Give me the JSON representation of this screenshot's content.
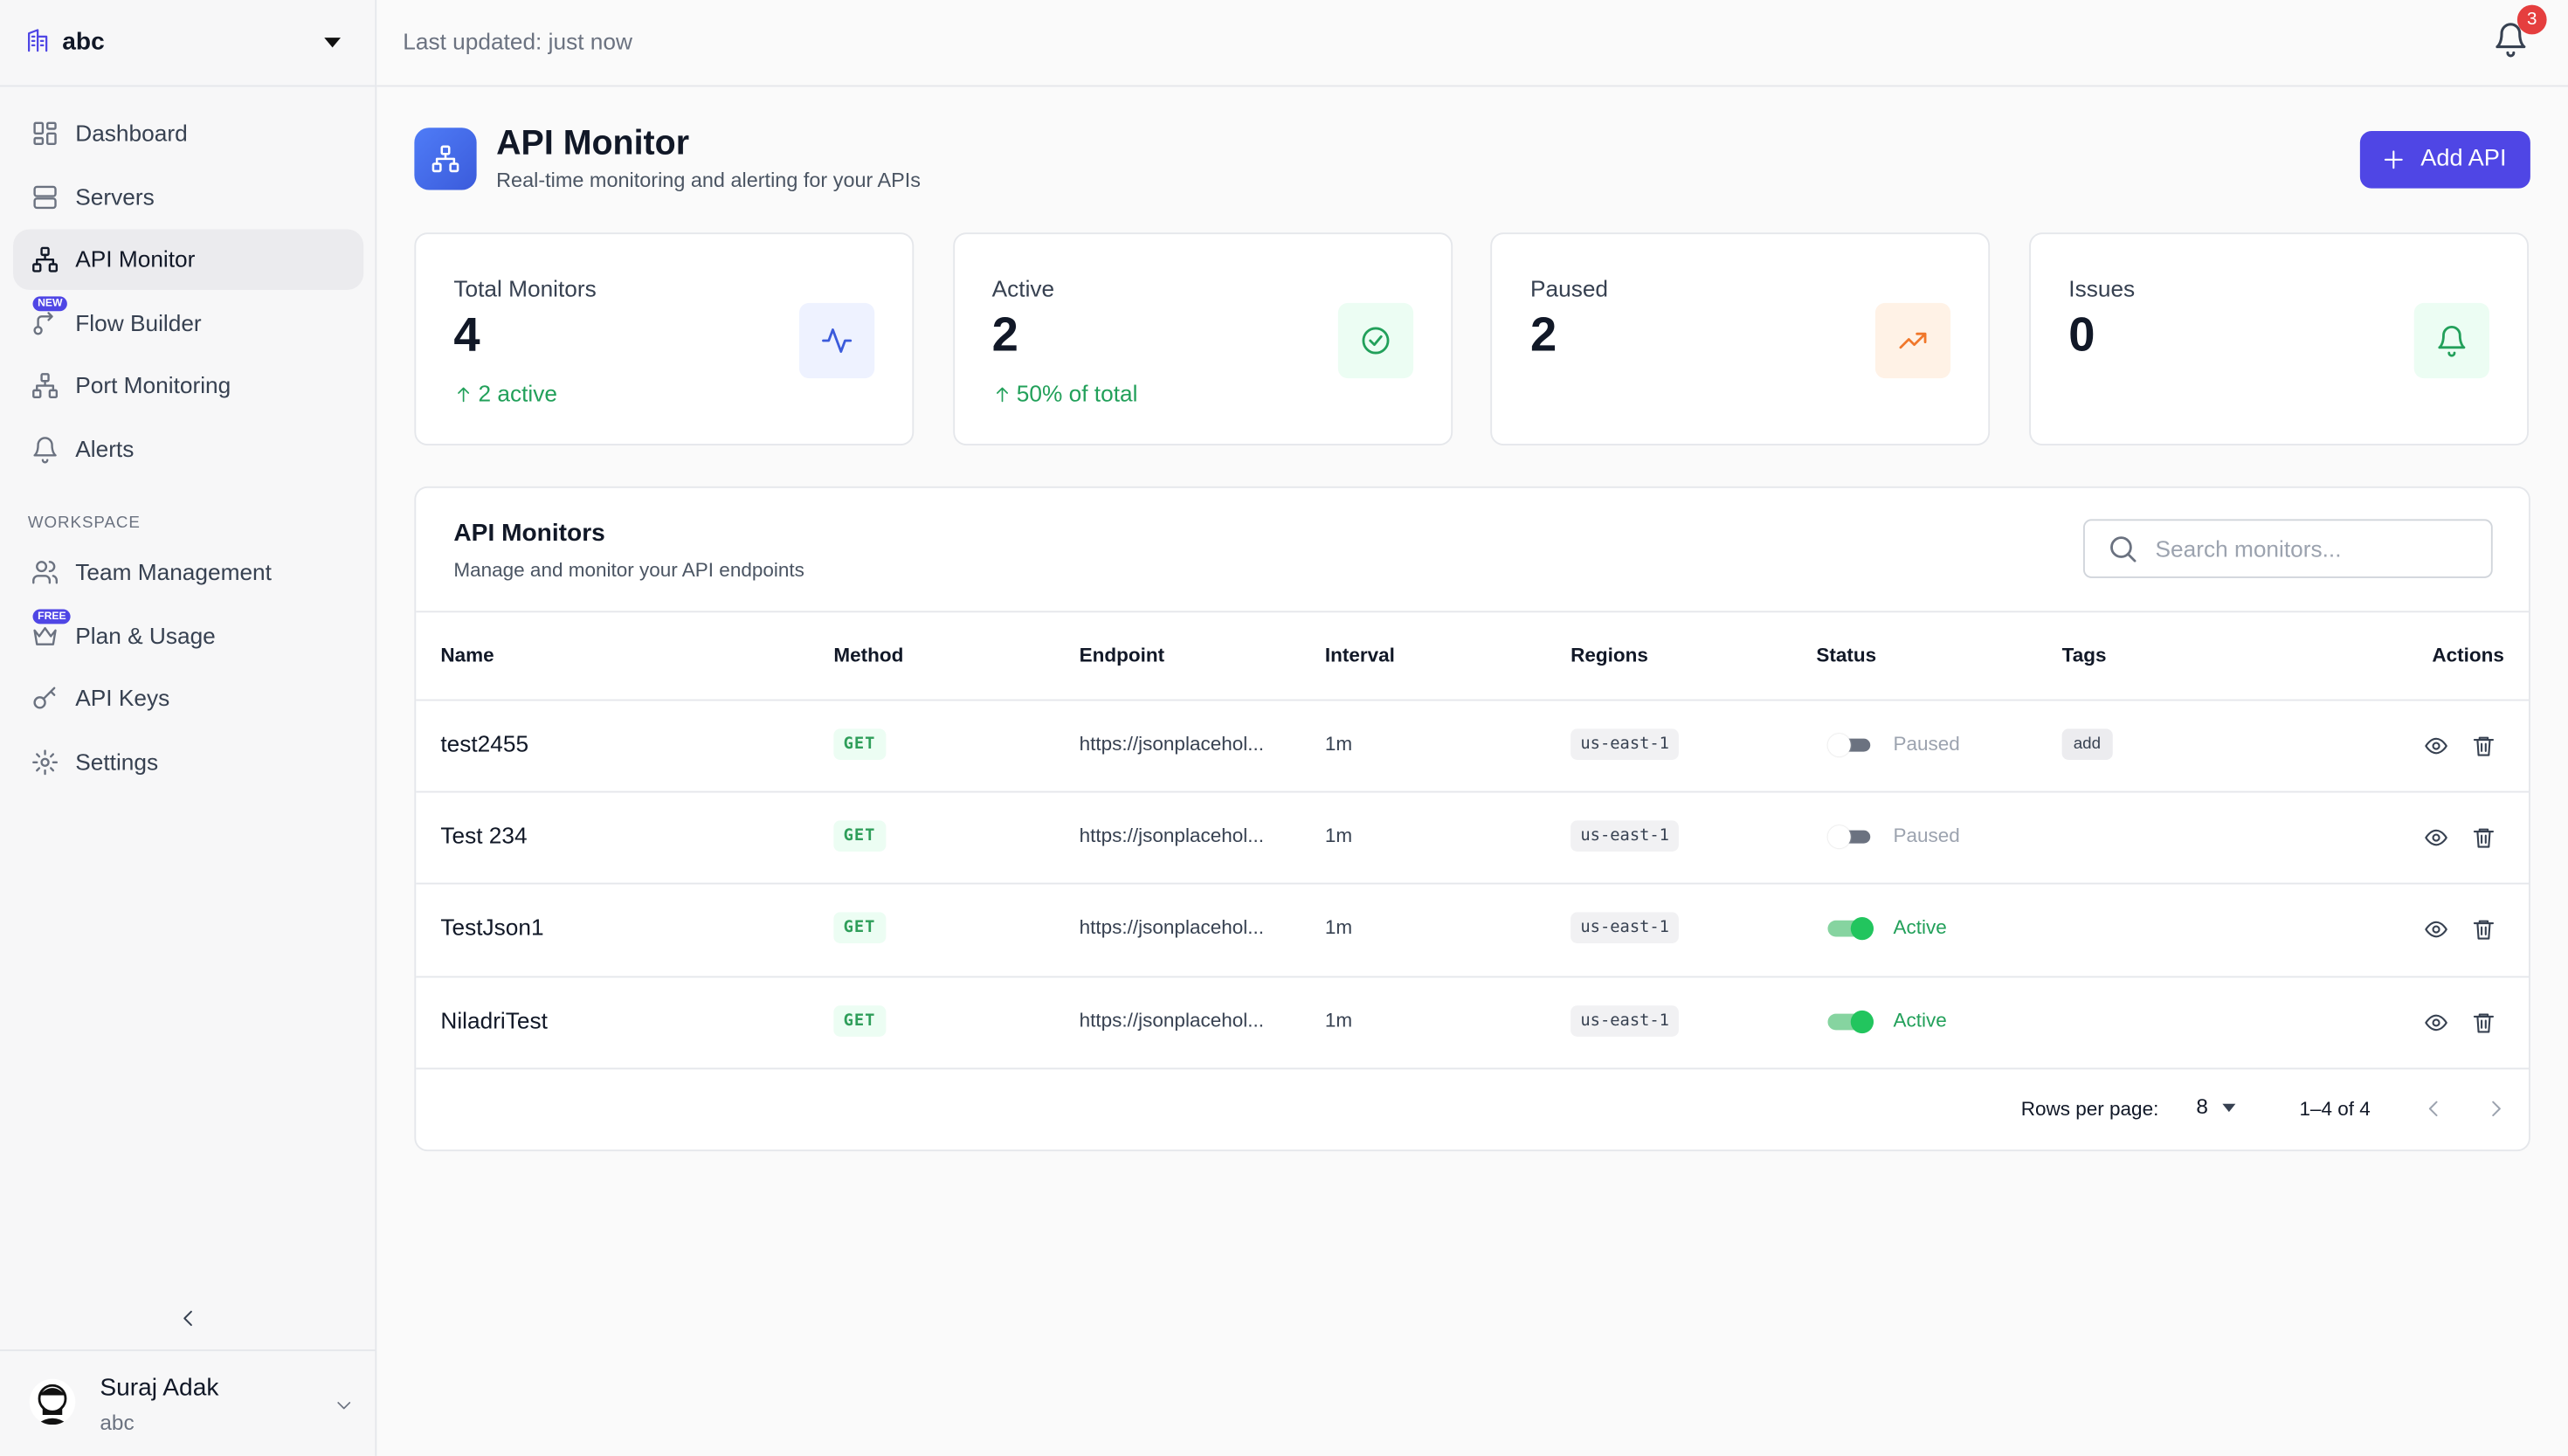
{
  "sidebar": {
    "org": "abc",
    "nav": [
      {
        "label": "Dashboard"
      },
      {
        "label": "Servers"
      },
      {
        "label": "API Monitor",
        "active": true
      },
      {
        "label": "Flow Builder",
        "badge": "NEW"
      },
      {
        "label": "Port Monitoring"
      },
      {
        "label": "Alerts"
      }
    ],
    "section": "WORKSPACE",
    "workspace_nav": [
      {
        "label": "Team Management"
      },
      {
        "label": "Plan & Usage",
        "badge": "FREE"
      },
      {
        "label": "API Keys"
      },
      {
        "label": "Settings"
      }
    ]
  },
  "user": {
    "name": "Suraj Adak",
    "org": "abc"
  },
  "header": {
    "last_updated": "Last updated: just now",
    "notifications": 3
  },
  "page": {
    "title": "API Monitor",
    "subtitle": "Real-time monitoring and alerting for your APIs",
    "add_button": "Add API"
  },
  "stats": [
    {
      "label": "Total Monitors",
      "value": 4,
      "note": "2 active",
      "tone": "blue"
    },
    {
      "label": "Active",
      "value": 2,
      "note": "50% of total",
      "tone": "green"
    },
    {
      "label": "Paused",
      "value": 2,
      "tone": "orange"
    },
    {
      "label": "Issues",
      "value": 0,
      "tone": "green"
    }
  ],
  "table": {
    "title": "API Monitors",
    "subtitle": "Manage and monitor your API endpoints",
    "search_placeholder": "Search monitors...",
    "columns": [
      "Name",
      "Method",
      "Endpoint",
      "Interval",
      "Regions",
      "Status",
      "Tags",
      "Actions"
    ],
    "rows": [
      {
        "name": "test2455",
        "method": "GET",
        "endpoint": "https://jsonplacehol...",
        "interval": "1m",
        "region": "us-east-1",
        "status": "Paused",
        "enabled": false,
        "tags": [
          "add"
        ]
      },
      {
        "name": "Test 234",
        "method": "GET",
        "endpoint": "https://jsonplacehol...",
        "interval": "1m",
        "region": "us-east-1",
        "status": "Paused",
        "enabled": false,
        "tags": []
      },
      {
        "name": "TestJson1",
        "method": "GET",
        "endpoint": "https://jsonplacehol...",
        "interval": "1m",
        "region": "us-east-1",
        "status": "Active",
        "enabled": true,
        "tags": []
      },
      {
        "name": "NiladriTest",
        "method": "GET",
        "endpoint": "https://jsonplacehol...",
        "interval": "1m",
        "region": "us-east-1",
        "status": "Active",
        "enabled": true,
        "tags": []
      }
    ]
  },
  "pagination": {
    "rows_per_page_label": "Rows per page:",
    "rows_per_page": 8,
    "range": "1–4 of 4"
  }
}
